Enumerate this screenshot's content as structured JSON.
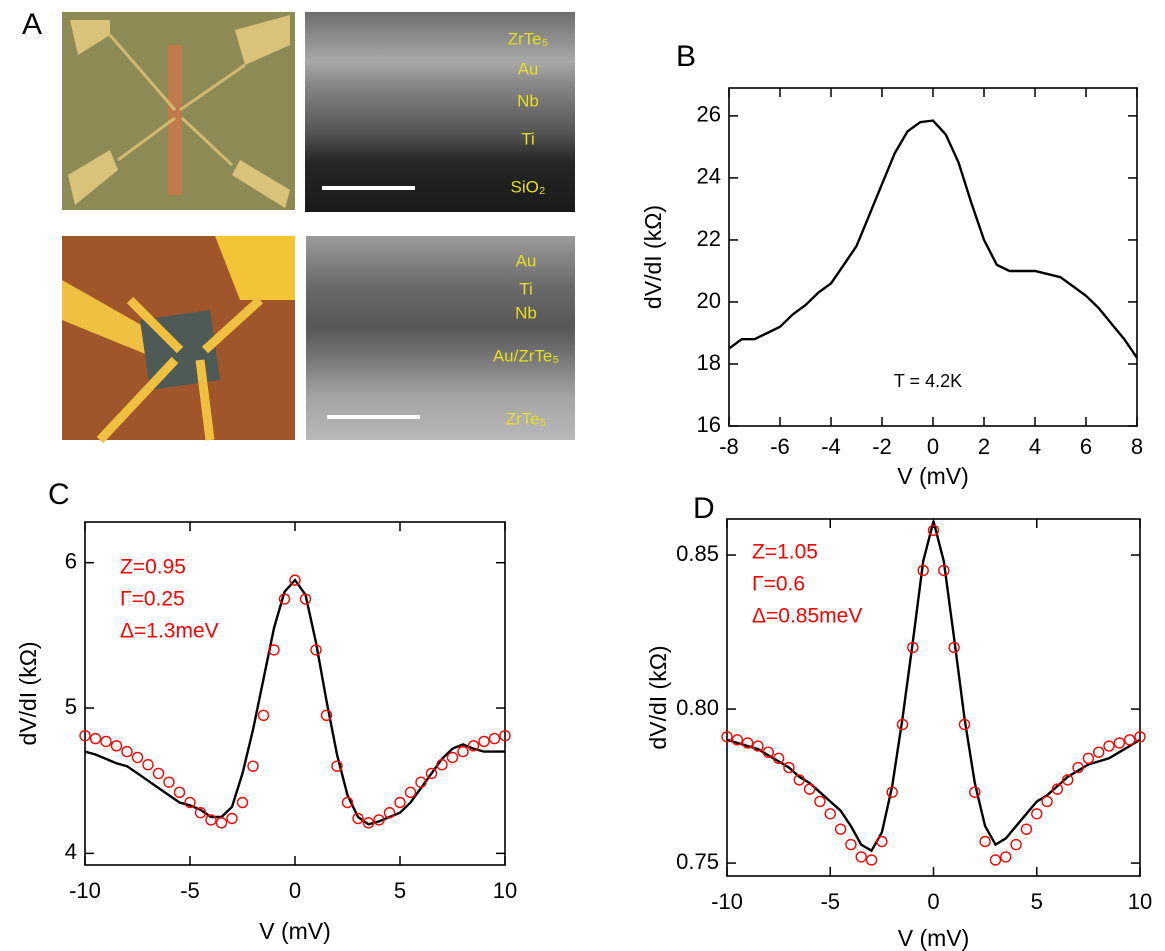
{
  "panel_a": {
    "label": "A",
    "top_layers": [
      "ZrTe₅",
      "Au",
      "Nb",
      "Ti",
      "SiO₂"
    ],
    "bottom_layers": [
      "Au",
      "Ti",
      "Nb",
      "Au/ZrTe₅",
      "ZrTe₅"
    ]
  },
  "chart_data": [
    {
      "type": "line",
      "panel_label": "B",
      "xlabel": "V (mV)",
      "ylabel": "dV/dI (kΩ)",
      "annotations": [
        "T = 4.2K"
      ],
      "annotation_color": "#000000",
      "x": [
        -8,
        -7.5,
        -7,
        -6.5,
        -6,
        -5.5,
        -5,
        -4.5,
        -4,
        -3.5,
        -3,
        -2.5,
        -2,
        -1.5,
        -1,
        -0.5,
        0,
        0.5,
        1,
        1.5,
        2,
        2.5,
        3,
        3.5,
        4,
        4.5,
        5,
        5.5,
        6,
        6.5,
        7,
        7.5,
        8
      ],
      "series": [
        {
          "color": "#000000",
          "marker": "none",
          "values": [
            18.5,
            18.8,
            18.8,
            19.0,
            19.2,
            19.6,
            19.9,
            20.3,
            20.6,
            21.2,
            21.8,
            22.8,
            23.8,
            24.8,
            25.5,
            25.8,
            25.85,
            25.4,
            24.5,
            23.2,
            22.0,
            21.2,
            21.0,
            21.0,
            21.0,
            20.9,
            20.8,
            20.5,
            20.2,
            19.8,
            19.3,
            18.8,
            18.2
          ]
        }
      ],
      "xlim": [
        -8,
        8
      ],
      "xticks": [
        -8,
        -6,
        -4,
        -2,
        0,
        2,
        4,
        6,
        8
      ],
      "ylim": [
        16,
        26.9
      ],
      "yticks": [
        16,
        18,
        20,
        22,
        24,
        26
      ]
    },
    {
      "type": "line",
      "panel_label": "C",
      "xlabel": "V (mV)",
      "ylabel": "dV/dI (kΩ)",
      "annotations": [
        "Z=0.95",
        "Γ=0.25",
        "Δ=1.3meV"
      ],
      "annotation_color": "#ff0000",
      "x": [
        -10,
        -9.5,
        -9,
        -8.5,
        -8,
        -7.5,
        -7,
        -6.5,
        -6,
        -5.5,
        -5,
        -4.5,
        -4,
        -3.5,
        -3,
        -2.5,
        -2,
        -1.5,
        -1,
        -0.5,
        0,
        0.5,
        1,
        1.5,
        2,
        2.5,
        3,
        3.5,
        4,
        4.5,
        5,
        5.5,
        6,
        6.5,
        7,
        7.5,
        8,
        8.5,
        9,
        9.5,
        10
      ],
      "series": [
        {
          "color": "#000000",
          "marker": "none",
          "values": [
            4.7,
            4.68,
            4.65,
            4.62,
            4.6,
            4.55,
            4.5,
            4.45,
            4.4,
            4.35,
            4.33,
            4.3,
            4.25,
            4.25,
            4.32,
            4.55,
            4.85,
            5.2,
            5.55,
            5.8,
            5.88,
            5.78,
            5.45,
            5.05,
            4.68,
            4.4,
            4.25,
            4.2,
            4.22,
            4.25,
            4.28,
            4.35,
            4.45,
            4.55,
            4.65,
            4.72,
            4.75,
            4.72,
            4.7,
            4.7,
            4.7
          ]
        },
        {
          "color": "#ff0000",
          "marker": "circle",
          "values": [
            4.81,
            4.79,
            4.77,
            4.74,
            4.7,
            4.66,
            4.61,
            4.55,
            4.49,
            4.42,
            4.35,
            4.28,
            4.23,
            4.21,
            4.24,
            4.35,
            4.6,
            4.95,
            5.4,
            5.75,
            5.88,
            5.75,
            5.4,
            4.95,
            4.6,
            4.35,
            4.24,
            4.21,
            4.23,
            4.28,
            4.35,
            4.42,
            4.49,
            4.55,
            4.61,
            4.66,
            4.7,
            4.74,
            4.77,
            4.79,
            4.81
          ]
        }
      ],
      "xlim": [
        -10,
        10
      ],
      "xticks": [
        -10,
        -5,
        0,
        5,
        10
      ],
      "ylim": [
        3.92,
        6.28
      ],
      "yticks": [
        4,
        5,
        6
      ]
    },
    {
      "type": "line",
      "panel_label": "D",
      "xlabel": "V (mV)",
      "ylabel": "dV/dI (kΩ)",
      "annotations": [
        "Z=1.05",
        "Γ=0.6",
        "Δ=0.85meV"
      ],
      "annotation_color": "#ff0000",
      "x": [
        -10,
        -9.5,
        -9,
        -8.5,
        -8,
        -7.5,
        -7,
        -6.5,
        -6,
        -5.5,
        -5,
        -4.5,
        -4,
        -3.5,
        -3,
        -2.5,
        -2,
        -1.5,
        -1,
        -0.5,
        0,
        0.5,
        1,
        1.5,
        2,
        2.5,
        3,
        3.5,
        4,
        4.5,
        5,
        5.5,
        6,
        6.5,
        7,
        7.5,
        8,
        8.5,
        9,
        9.5,
        10
      ],
      "series": [
        {
          "color": "#000000",
          "marker": "none",
          "values": [
            0.79,
            0.789,
            0.788,
            0.787,
            0.785,
            0.783,
            0.781,
            0.778,
            0.776,
            0.773,
            0.77,
            0.767,
            0.762,
            0.756,
            0.754,
            0.76,
            0.775,
            0.797,
            0.822,
            0.848,
            0.861,
            0.848,
            0.823,
            0.797,
            0.776,
            0.762,
            0.756,
            0.758,
            0.762,
            0.766,
            0.77,
            0.772,
            0.775,
            0.778,
            0.78,
            0.782,
            0.783,
            0.784,
            0.786,
            0.788,
            0.79
          ]
        },
        {
          "color": "#ff0000",
          "marker": "circle",
          "values": [
            0.791,
            0.79,
            0.789,
            0.788,
            0.786,
            0.784,
            0.781,
            0.777,
            0.774,
            0.77,
            0.766,
            0.761,
            0.756,
            0.752,
            0.751,
            0.757,
            0.773,
            0.795,
            0.82,
            0.845,
            0.858,
            0.845,
            0.82,
            0.795,
            0.773,
            0.757,
            0.751,
            0.752,
            0.756,
            0.761,
            0.766,
            0.77,
            0.774,
            0.777,
            0.781,
            0.784,
            0.786,
            0.788,
            0.789,
            0.79,
            0.791
          ]
        }
      ],
      "xlim": [
        -10,
        10
      ],
      "xticks": [
        -10,
        -5,
        0,
        5,
        10
      ],
      "ylim": [
        0.7458,
        0.8617
      ],
      "yticks": [
        0.75,
        {
          "value": 0.8,
          "label": "0.80"
        },
        0.85
      ]
    }
  ]
}
